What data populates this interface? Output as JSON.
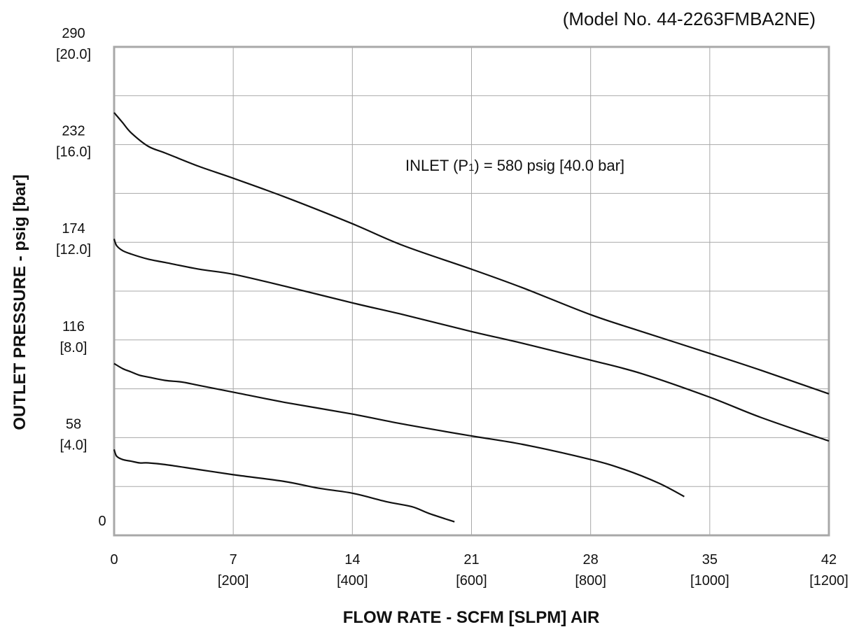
{
  "chart_data": {
    "type": "line",
    "title": "(Model No. 44-2263FMBA2NE)",
    "xlabel": "FLOW RATE - SCFM [SLPM] AIR",
    "ylabel": "OUTLET PRESSURE - psig [bar]",
    "xlim": [
      0,
      42
    ],
    "ylim": [
      0,
      290
    ],
    "grid": true,
    "annotation": {
      "prefix": "INLET (P",
      "subscript": "1",
      "suffix": ") =  580 psig [40.0 bar]"
    },
    "x_ticks": [
      {
        "value": 0,
        "line1": "0",
        "line2": ""
      },
      {
        "value": 7,
        "line1": "7",
        "line2": "[200]"
      },
      {
        "value": 14,
        "line1": "14",
        "line2": "[400]"
      },
      {
        "value": 21,
        "line1": "21",
        "line2": "[600]"
      },
      {
        "value": 28,
        "line1": "28",
        "line2": "[800]"
      },
      {
        "value": 35,
        "line1": "35",
        "line2": "[1000]"
      },
      {
        "value": 42,
        "line1": "42",
        "line2": "[1200]"
      }
    ],
    "y_ticks": [
      {
        "value": 0,
        "line1": "0",
        "line2": ""
      },
      {
        "value": 58,
        "line1": "58",
        "line2": "[4.0]"
      },
      {
        "value": 116,
        "line1": "116",
        "line2": "[8.0]"
      },
      {
        "value": 174,
        "line1": "174",
        "line2": "[12.0]"
      },
      {
        "value": 232,
        "line1": "232",
        "line2": "[16.0]"
      },
      {
        "value": 290,
        "line1": "290",
        "line2": "[20.0]"
      }
    ],
    "x_gridlines": [
      7,
      14,
      21,
      28,
      35
    ],
    "y_gridlines": [
      29,
      58,
      87,
      116,
      145,
      174,
      203,
      232,
      261
    ],
    "series": [
      {
        "x": [
          0,
          0.5,
          1,
          2,
          3,
          5,
          7,
          10,
          14,
          17,
          21,
          24,
          28,
          31,
          35,
          38,
          42
        ],
        "y": [
          251,
          245,
          239,
          231,
          227,
          219,
          212,
          201,
          185,
          172,
          158,
          147,
          131,
          121,
          108,
          98,
          84
        ]
      },
      {
        "x": [
          0,
          0.15,
          0.5,
          1,
          2,
          3,
          5,
          7,
          10,
          14,
          17,
          21,
          24,
          28,
          31,
          35,
          38,
          42
        ],
        "y": [
          176,
          172,
          169,
          167,
          164,
          162,
          158,
          155,
          148,
          138,
          131,
          121,
          114,
          104,
          96,
          82,
          70,
          56
        ]
      },
      {
        "x": [
          0,
          0.5,
          1,
          1.5,
          2,
          3,
          4,
          5,
          7,
          10,
          14,
          17,
          21,
          24,
          28,
          30,
          32,
          33.5
        ],
        "y": [
          102,
          99,
          97,
          95,
          94,
          92,
          91,
          89,
          85,
          79,
          72,
          66,
          59,
          54,
          45,
          39,
          31,
          23
        ]
      },
      {
        "x": [
          0,
          0.15,
          0.5,
          1,
          1.5,
          2,
          3,
          5,
          7,
          10,
          12,
          14,
          16,
          17.5,
          18.5,
          20
        ],
        "y": [
          51,
          47,
          45,
          44,
          43,
          43,
          42,
          39,
          36,
          32,
          28,
          25,
          20,
          17,
          13,
          8
        ]
      }
    ]
  }
}
